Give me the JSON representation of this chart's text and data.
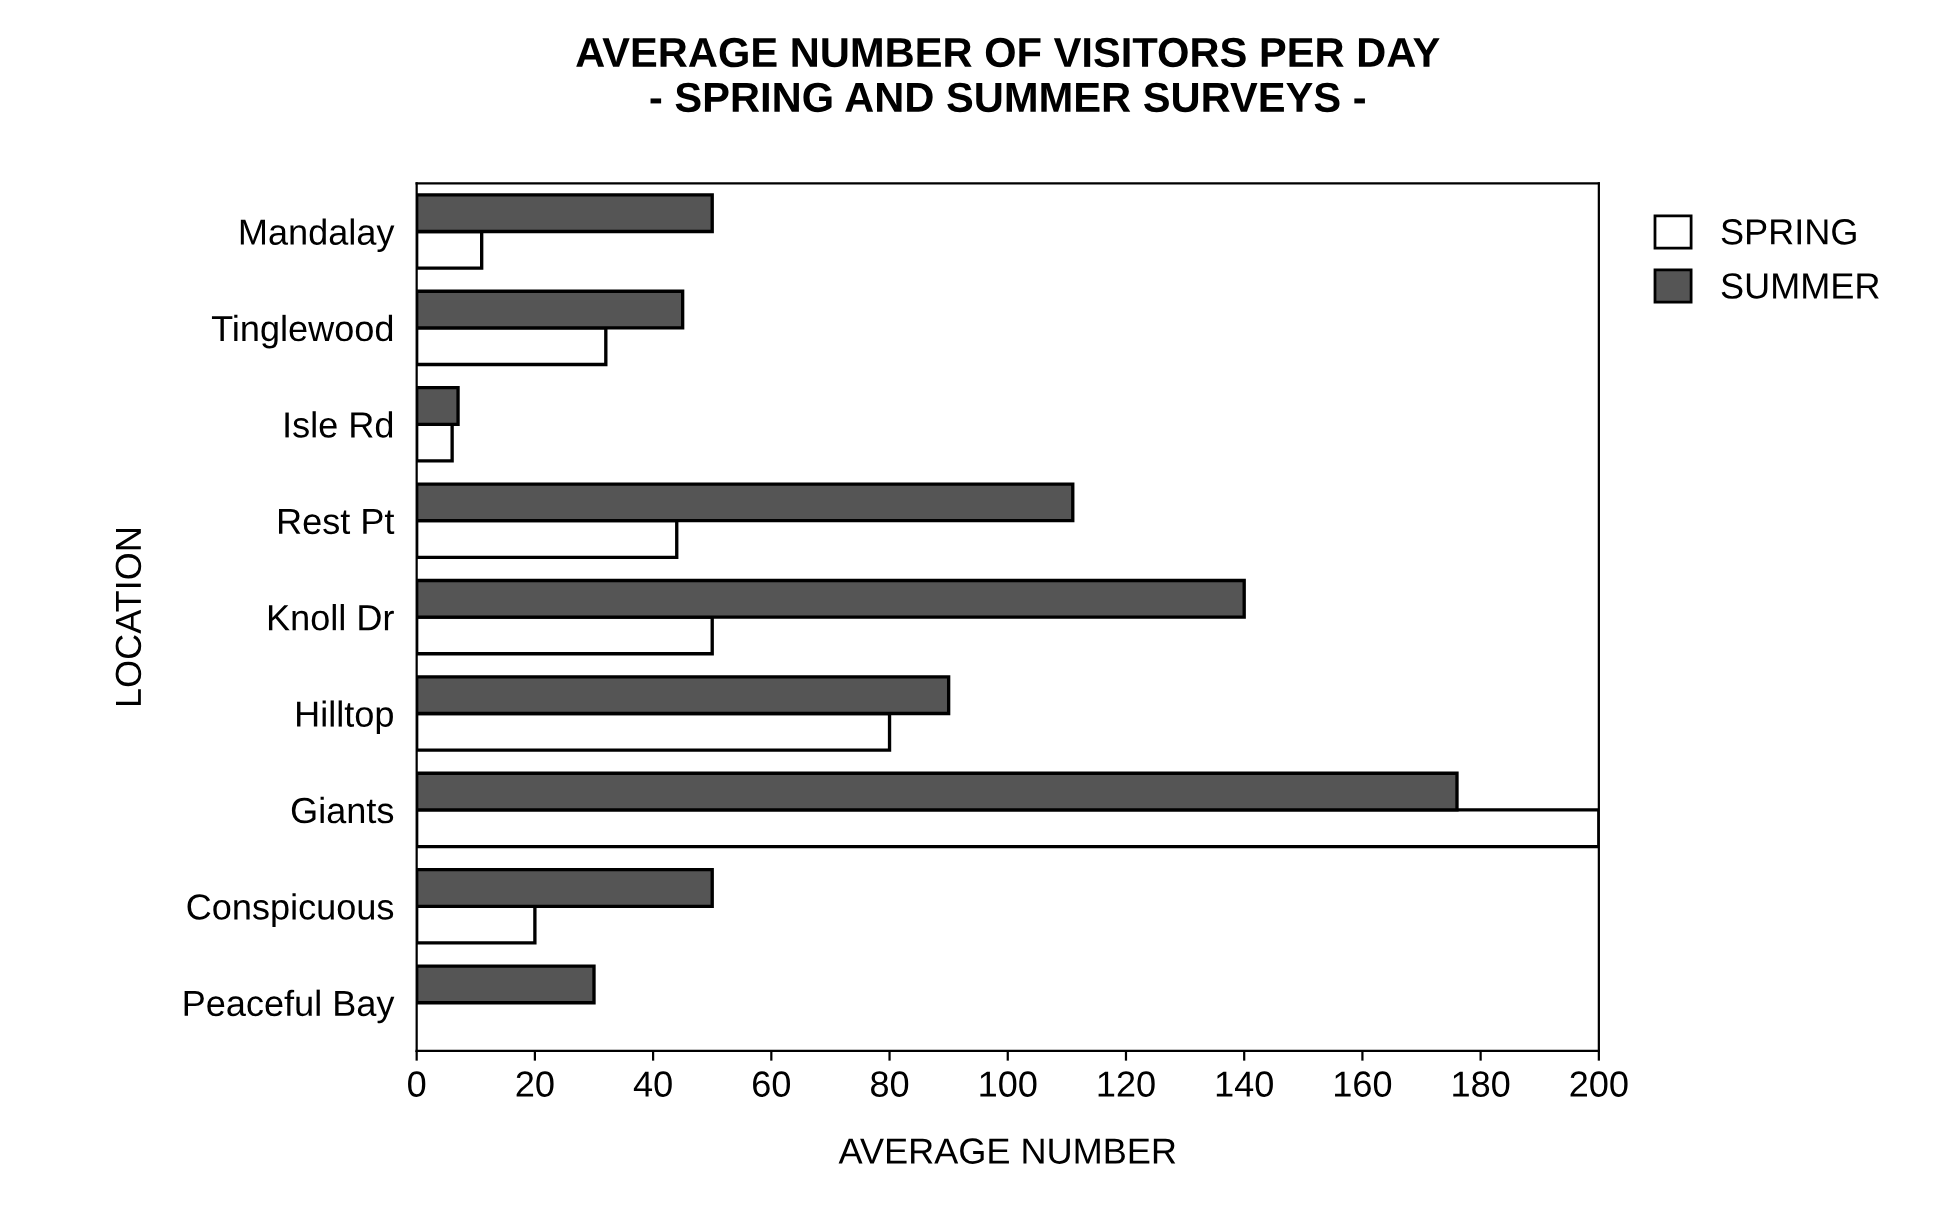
{
  "chart_data": {
    "type": "bar",
    "orientation": "horizontal",
    "title": "AVERAGE NUMBER OF VISITORS PER DAY\n- SPRING AND SUMMER SURVEYS -",
    "xlabel": "AVERAGE NUMBER",
    "ylabel": "LOCATION",
    "categories": [
      "Mandalay",
      "Tinglewood",
      "Isle Rd",
      "Rest Pt",
      "Knoll Dr",
      "Hilltop",
      "Giants",
      "Conspicuous",
      "Peaceful Bay"
    ],
    "series": [
      {
        "name": "SPRING",
        "color": "#ffffff",
        "values": [
          11,
          32,
          6,
          44,
          50,
          80,
          200,
          20,
          null
        ]
      },
      {
        "name": "SUMMER",
        "color": "#555555",
        "values": [
          50,
          45,
          7,
          111,
          140,
          90,
          176,
          50,
          30
        ]
      }
    ],
    "xlim": [
      0,
      200
    ],
    "xticks": [
      0,
      20,
      40,
      60,
      80,
      100,
      120,
      140,
      160,
      180,
      200
    ],
    "grid": false,
    "legend": "top right"
  }
}
